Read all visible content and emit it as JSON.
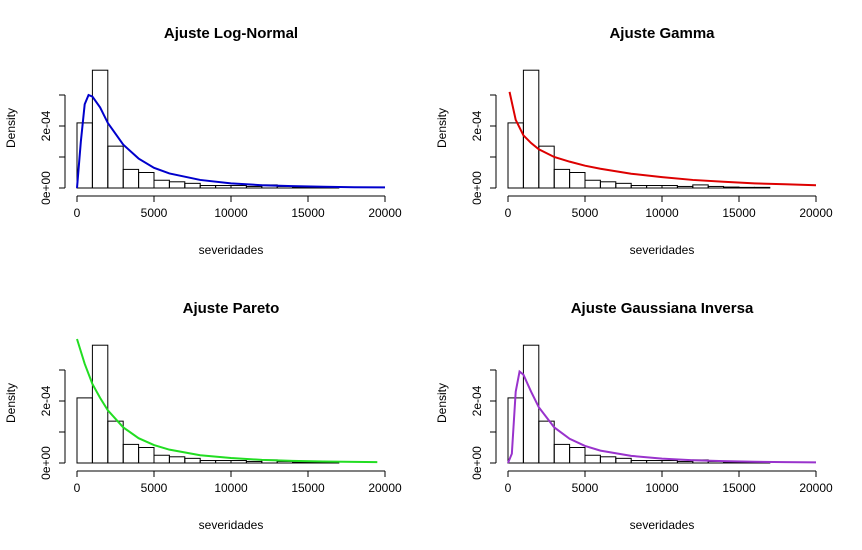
{
  "chart_data": [
    {
      "type": "histogram",
      "title": "Ajuste Log-Normal",
      "xlabel": "severidades",
      "ylabel": "Density",
      "bins": [
        0,
        1000,
        2000,
        3000,
        4000,
        5000,
        6000,
        7000,
        8000,
        9000,
        10000,
        11000,
        12000,
        13000,
        14000,
        15000,
        16000,
        17000
      ],
      "values": [
        0.00021,
        0.00038,
        0.000135,
        6e-05,
        5e-05,
        2.5e-05,
        2e-05,
        1.5e-05,
        8e-06,
        8e-06,
        8e-06,
        5e-06,
        1e-05,
        5e-06,
        3e-06,
        2e-06,
        2e-06
      ],
      "curve": {
        "color": "#0000cc",
        "x": [
          0,
          250,
          500,
          750,
          1000,
          1500,
          2000,
          3000,
          4000,
          5000,
          6000,
          8000,
          10000,
          12000,
          14000,
          16000,
          18000,
          20000
        ],
        "values": [
          0,
          0.00015,
          0.00027,
          0.0003,
          0.000295,
          0.00026,
          0.00021,
          0.00014,
          9.5e-05,
          6.5e-05,
          4.7e-05,
          2.6e-05,
          1.5e-05,
          9e-06,
          6e-06,
          4e-06,
          2.5e-06,
          2e-06
        ]
      },
      "xlim": [
        0,
        20000
      ],
      "xticks": [
        0,
        5000,
        10000,
        15000,
        20000
      ],
      "ylim": [
        0,
        0.0004
      ],
      "yticks": [
        {
          "value": 0,
          "label": "0e+00"
        },
        {
          "value": 0.0001,
          "label": null
        },
        {
          "value": 0.0002,
          "label": "2e-04"
        },
        {
          "value": 0.0003,
          "label": null
        }
      ]
    },
    {
      "type": "histogram",
      "title": "Ajuste Gamma",
      "xlabel": "severidades",
      "ylabel": "Density",
      "bins": [
        0,
        1000,
        2000,
        3000,
        4000,
        5000,
        6000,
        7000,
        8000,
        9000,
        10000,
        11000,
        12000,
        13000,
        14000,
        15000,
        16000,
        17000
      ],
      "values": [
        0.00021,
        0.00038,
        0.000135,
        6e-05,
        5e-05,
        2.5e-05,
        2e-05,
        1.5e-05,
        8e-06,
        8e-06,
        8e-06,
        5e-06,
        1e-05,
        5e-06,
        3e-06,
        2e-06,
        2e-06
      ],
      "curve": {
        "color": "#dd0000",
        "x": [
          100,
          500,
          1000,
          1500,
          2000,
          3000,
          4000,
          5000,
          6000,
          8000,
          10000,
          12000,
          14000,
          16000,
          18000,
          20000
        ],
        "values": [
          0.00031,
          0.00022,
          0.00017,
          0.000145,
          0.000125,
          0.0001,
          8.5e-05,
          7.2e-05,
          6.2e-05,
          4.6e-05,
          3.5e-05,
          2.6e-05,
          2e-05,
          1.5e-05,
          1.2e-05,
          9e-06
        ]
      },
      "xlim": [
        0,
        20000
      ],
      "xticks": [
        0,
        5000,
        10000,
        15000,
        20000
      ],
      "ylim": [
        0,
        0.0004
      ],
      "yticks": [
        {
          "value": 0,
          "label": "0e+00"
        },
        {
          "value": 0.0001,
          "label": null
        },
        {
          "value": 0.0002,
          "label": "2e-04"
        },
        {
          "value": 0.0003,
          "label": null
        }
      ]
    },
    {
      "type": "histogram",
      "title": "Ajuste Pareto",
      "xlabel": "severidades",
      "ylabel": "Density",
      "bins": [
        0,
        1000,
        2000,
        3000,
        4000,
        5000,
        6000,
        7000,
        8000,
        9000,
        10000,
        11000,
        12000,
        13000,
        14000,
        15000,
        16000,
        17000
      ],
      "values": [
        0.00021,
        0.00038,
        0.000135,
        6e-05,
        5e-05,
        2.5e-05,
        2e-05,
        1.5e-05,
        8e-06,
        8e-06,
        8e-06,
        5e-06,
        1e-05,
        5e-06,
        3e-06,
        2e-06,
        2e-06
      ],
      "curve": {
        "color": "#22dd22",
        "x": [
          0,
          500,
          1000,
          1500,
          2000,
          3000,
          4000,
          5000,
          6000,
          8000,
          10000,
          12000,
          14000,
          16000,
          18000,
          19500
        ],
        "values": [
          0.0004,
          0.00032,
          0.000255,
          0.00021,
          0.00017,
          0.000115,
          8e-05,
          5.8e-05,
          4.3e-05,
          2.5e-05,
          1.6e-05,
          1e-05,
          7e-06,
          5e-06,
          3.5e-06,
          3e-06
        ]
      },
      "xlim": [
        0,
        20000
      ],
      "xticks": [
        0,
        5000,
        10000,
        15000,
        20000
      ],
      "ylim": [
        0,
        0.0004
      ],
      "yticks": [
        {
          "value": 0,
          "label": "0e+00"
        },
        {
          "value": 0.0001,
          "label": null
        },
        {
          "value": 0.0002,
          "label": "2e-04"
        },
        {
          "value": 0.0003,
          "label": null
        }
      ]
    },
    {
      "type": "histogram",
      "title": "Ajuste Gaussiana Inversa",
      "xlabel": "severidades",
      "ylabel": "Density",
      "bins": [
        0,
        1000,
        2000,
        3000,
        4000,
        5000,
        6000,
        7000,
        8000,
        9000,
        10000,
        11000,
        12000,
        13000,
        14000,
        15000,
        16000,
        17000
      ],
      "values": [
        0.00021,
        0.00038,
        0.000135,
        6e-05,
        5e-05,
        2.5e-05,
        2e-05,
        1.5e-05,
        8e-06,
        8e-06,
        8e-06,
        5e-06,
        1e-05,
        5e-06,
        3e-06,
        2e-06,
        2e-06
      ],
      "curve": {
        "color": "#9933cc",
        "x": [
          0,
          250,
          500,
          750,
          1000,
          1500,
          2000,
          3000,
          4000,
          5000,
          6000,
          8000,
          10000,
          12000,
          14000,
          16000,
          18000,
          20000
        ],
        "values": [
          0,
          3e-05,
          0.00023,
          0.000295,
          0.000285,
          0.00023,
          0.00018,
          0.000115,
          7.8e-05,
          5.5e-05,
          4e-05,
          2.3e-05,
          1.4e-05,
          9e-06,
          6e-06,
          4e-06,
          3e-06,
          2e-06
        ]
      },
      "xlim": [
        0,
        20000
      ],
      "xticks": [
        0,
        5000,
        10000,
        15000,
        20000
      ],
      "ylim": [
        0,
        0.0004
      ],
      "yticks": [
        {
          "value": 0,
          "label": "0e+00"
        },
        {
          "value": 0.0001,
          "label": null
        },
        {
          "value": 0.0002,
          "label": "2e-04"
        },
        {
          "value": 0.0003,
          "label": null
        }
      ]
    }
  ]
}
